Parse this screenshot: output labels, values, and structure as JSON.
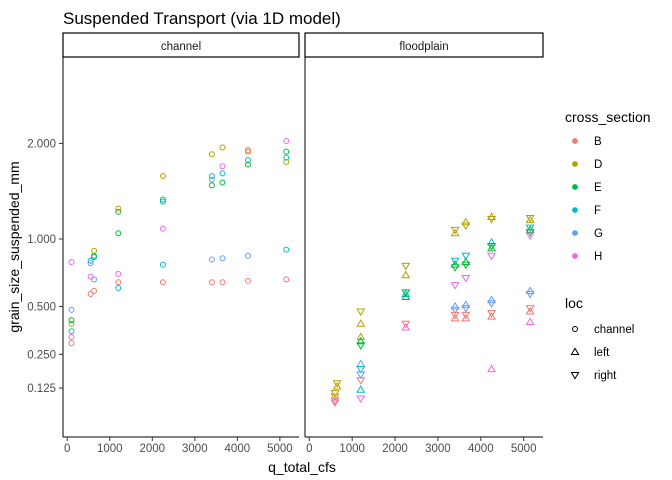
{
  "chart_data": {
    "type": "scatter",
    "title": "Suspended Transport (via 1D model)",
    "xlabel": "q_total_cfs",
    "ylabel": "grain_size_suspended_mm",
    "y_scale": "sqrt",
    "xlim": [
      -100,
      5450
    ],
    "ylim": [
      0.02,
      3.2
    ],
    "x_ticks": [
      0,
      1000,
      2000,
      3000,
      4000,
      5000
    ],
    "x_tick_labels": [
      "0",
      "1000",
      "2000",
      "3000",
      "4000",
      "5000"
    ],
    "y_ticks": [
      0.125,
      0.25,
      0.5,
      1.0,
      2.0
    ],
    "y_tick_labels": [
      "0.125",
      "0.250",
      "0.500",
      "1.000",
      "2.000"
    ],
    "facets": [
      "channel",
      "floodplain"
    ],
    "grid": false,
    "legend_position": "right",
    "colors": {
      "B": "#F8766D",
      "D": "#B79F00",
      "E": "#00BA38",
      "F": "#00BFC4",
      "G": "#619CFF",
      "H": "#F564E3"
    },
    "legends": [
      {
        "title": "cross_section",
        "entries": [
          "B",
          "D",
          "E",
          "F",
          "G",
          "H"
        ]
      },
      {
        "title": "loc",
        "entries": [
          "channel",
          "left",
          "right"
        ],
        "shapes": [
          "circle",
          "triangle-up",
          "triangle-down"
        ]
      }
    ],
    "points": [
      {
        "facet": "channel",
        "section": "B",
        "loc": "channel",
        "x": 100,
        "y": 0.3
      },
      {
        "facet": "channel",
        "section": "H",
        "loc": "channel",
        "x": 100,
        "y": 0.33
      },
      {
        "facet": "channel",
        "section": "F",
        "loc": "channel",
        "x": 100,
        "y": 0.36
      },
      {
        "facet": "channel",
        "section": "D",
        "loc": "channel",
        "x": 100,
        "y": 0.4
      },
      {
        "facet": "channel",
        "section": "E",
        "loc": "channel",
        "x": 100,
        "y": 0.42
      },
      {
        "facet": "channel",
        "section": "G",
        "loc": "channel",
        "x": 100,
        "y": 0.48
      },
      {
        "facet": "channel",
        "section": "H",
        "loc": "channel",
        "x": 100,
        "y": 0.81
      },
      {
        "facet": "channel",
        "section": "B",
        "loc": "channel",
        "x": 550,
        "y": 0.58
      },
      {
        "facet": "channel",
        "section": "B",
        "loc": "channel",
        "x": 630,
        "y": 0.6
      },
      {
        "facet": "channel",
        "section": "H",
        "loc": "channel",
        "x": 550,
        "y": 0.7
      },
      {
        "facet": "channel",
        "section": "G",
        "loc": "channel",
        "x": 630,
        "y": 0.68
      },
      {
        "facet": "channel",
        "section": "F",
        "loc": "channel",
        "x": 550,
        "y": 0.82
      },
      {
        "facet": "channel",
        "section": "G",
        "loc": "channel",
        "x": 550,
        "y": 0.8
      },
      {
        "facet": "channel",
        "section": "E",
        "loc": "channel",
        "x": 630,
        "y": 0.85
      },
      {
        "facet": "channel",
        "section": "F",
        "loc": "channel",
        "x": 630,
        "y": 0.86
      },
      {
        "facet": "channel",
        "section": "D",
        "loc": "channel",
        "x": 630,
        "y": 0.9
      },
      {
        "facet": "channel",
        "section": "E",
        "loc": "channel",
        "x": 1200,
        "y": 1.25
      },
      {
        "facet": "channel",
        "section": "D",
        "loc": "channel",
        "x": 1200,
        "y": 1.28
      },
      {
        "facet": "channel",
        "section": "E",
        "loc": "channel",
        "x": 1200,
        "y": 1.05
      },
      {
        "facet": "channel",
        "section": "H",
        "loc": "channel",
        "x": 1200,
        "y": 0.72
      },
      {
        "facet": "channel",
        "section": "B",
        "loc": "channel",
        "x": 1200,
        "y": 0.66
      },
      {
        "facet": "channel",
        "section": "F",
        "loc": "channel",
        "x": 1200,
        "y": 0.62
      },
      {
        "facet": "channel",
        "section": "D",
        "loc": "channel",
        "x": 2250,
        "y": 1.62
      },
      {
        "facet": "channel",
        "section": "E",
        "loc": "channel",
        "x": 2250,
        "y": 1.37
      },
      {
        "facet": "channel",
        "section": "F",
        "loc": "channel",
        "x": 2250,
        "y": 1.35
      },
      {
        "facet": "channel",
        "section": "H",
        "loc": "channel",
        "x": 2250,
        "y": 1.09
      },
      {
        "facet": "channel",
        "section": "F",
        "loc": "channel",
        "x": 2250,
        "y": 0.79
      },
      {
        "facet": "channel",
        "section": "B",
        "loc": "channel",
        "x": 2250,
        "y": 0.66
      },
      {
        "facet": "channel",
        "section": "D",
        "loc": "channel",
        "x": 3400,
        "y": 1.87
      },
      {
        "facet": "channel",
        "section": "F",
        "loc": "channel",
        "x": 3400,
        "y": 1.62
      },
      {
        "facet": "channel",
        "section": "G",
        "loc": "channel",
        "x": 3400,
        "y": 1.58
      },
      {
        "facet": "channel",
        "section": "E",
        "loc": "channel",
        "x": 3400,
        "y": 1.52
      },
      {
        "facet": "channel",
        "section": "G",
        "loc": "channel",
        "x": 3400,
        "y": 0.83
      },
      {
        "facet": "channel",
        "section": "B",
        "loc": "channel",
        "x": 3400,
        "y": 0.66
      },
      {
        "facet": "channel",
        "section": "D",
        "loc": "channel",
        "x": 3650,
        "y": 1.95
      },
      {
        "facet": "channel",
        "section": "H",
        "loc": "channel",
        "x": 3650,
        "y": 1.73
      },
      {
        "facet": "channel",
        "section": "F",
        "loc": "channel",
        "x": 3650,
        "y": 1.65
      },
      {
        "facet": "channel",
        "section": "E",
        "loc": "channel",
        "x": 3650,
        "y": 1.55
      },
      {
        "facet": "channel",
        "section": "G",
        "loc": "channel",
        "x": 3650,
        "y": 0.84
      },
      {
        "facet": "channel",
        "section": "B",
        "loc": "channel",
        "x": 3650,
        "y": 0.66
      },
      {
        "facet": "channel",
        "section": "D",
        "loc": "channel",
        "x": 4250,
        "y": 1.9
      },
      {
        "facet": "channel",
        "section": "B",
        "loc": "channel",
        "x": 4250,
        "y": 1.92
      },
      {
        "facet": "channel",
        "section": "F",
        "loc": "channel",
        "x": 4250,
        "y": 1.8
      },
      {
        "facet": "channel",
        "section": "E",
        "loc": "channel",
        "x": 4250,
        "y": 1.75
      },
      {
        "facet": "channel",
        "section": "G",
        "loc": "channel",
        "x": 4250,
        "y": 0.86
      },
      {
        "facet": "channel",
        "section": "B",
        "loc": "channel",
        "x": 4250,
        "y": 0.67
      },
      {
        "facet": "channel",
        "section": "H",
        "loc": "channel",
        "x": 5150,
        "y": 2.03
      },
      {
        "facet": "channel",
        "section": "E",
        "loc": "channel",
        "x": 5150,
        "y": 1.9
      },
      {
        "facet": "channel",
        "section": "F",
        "loc": "channel",
        "x": 5150,
        "y": 1.83
      },
      {
        "facet": "channel",
        "section": "D",
        "loc": "channel",
        "x": 5150,
        "y": 1.78
      },
      {
        "facet": "channel",
        "section": "F",
        "loc": "channel",
        "x": 5150,
        "y": 0.91
      },
      {
        "facet": "channel",
        "section": "B",
        "loc": "channel",
        "x": 5150,
        "y": 0.68
      },
      {
        "facet": "floodplain",
        "section": "D",
        "loc": "right",
        "x": 600,
        "y": 0.1
      },
      {
        "facet": "floodplain",
        "section": "D",
        "loc": "right",
        "x": 600,
        "y": 0.11
      },
      {
        "facet": "floodplain",
        "section": "H",
        "loc": "right",
        "x": 600,
        "y": 0.09
      },
      {
        "facet": "floodplain",
        "section": "B",
        "loc": "right",
        "x": 600,
        "y": 0.085
      },
      {
        "facet": "floodplain",
        "section": "D",
        "loc": "left",
        "x": 650,
        "y": 0.13
      },
      {
        "facet": "floodplain",
        "section": "D",
        "loc": "right",
        "x": 650,
        "y": 0.14
      },
      {
        "facet": "floodplain",
        "section": "D",
        "loc": "right",
        "x": 1200,
        "y": 0.47
      },
      {
        "facet": "floodplain",
        "section": "D",
        "loc": "left",
        "x": 1200,
        "y": 0.4
      },
      {
        "facet": "floodplain",
        "section": "D",
        "loc": "left",
        "x": 1200,
        "y": 0.33
      },
      {
        "facet": "floodplain",
        "section": "E",
        "loc": "left",
        "x": 1200,
        "y": 0.31
      },
      {
        "facet": "floodplain",
        "section": "E",
        "loc": "right",
        "x": 1200,
        "y": 0.29
      },
      {
        "facet": "floodplain",
        "section": "G",
        "loc": "left",
        "x": 1200,
        "y": 0.21
      },
      {
        "facet": "floodplain",
        "section": "F",
        "loc": "right",
        "x": 1200,
        "y": 0.19
      },
      {
        "facet": "floodplain",
        "section": "G",
        "loc": "right",
        "x": 1200,
        "y": 0.17
      },
      {
        "facet": "floodplain",
        "section": "B",
        "loc": "right",
        "x": 1200,
        "y": 0.15
      },
      {
        "facet": "floodplain",
        "section": "F",
        "loc": "left",
        "x": 1200,
        "y": 0.12
      },
      {
        "facet": "floodplain",
        "section": "H",
        "loc": "right",
        "x": 1200,
        "y": 0.095
      },
      {
        "facet": "floodplain",
        "section": "D",
        "loc": "right",
        "x": 2250,
        "y": 0.78
      },
      {
        "facet": "floodplain",
        "section": "D",
        "loc": "left",
        "x": 2250,
        "y": 0.71
      },
      {
        "facet": "floodplain",
        "section": "E",
        "loc": "right",
        "x": 2250,
        "y": 0.59
      },
      {
        "facet": "floodplain",
        "section": "F",
        "loc": "left",
        "x": 2250,
        "y": 0.58
      },
      {
        "facet": "floodplain",
        "section": "E",
        "loc": "left",
        "x": 2250,
        "y": 0.56
      },
      {
        "facet": "floodplain",
        "section": "B",
        "loc": "right",
        "x": 2250,
        "y": 0.4
      },
      {
        "facet": "floodplain",
        "section": "H",
        "loc": "left",
        "x": 2250,
        "y": 0.38
      },
      {
        "facet": "floodplain",
        "section": "D",
        "loc": "right",
        "x": 3400,
        "y": 1.08
      },
      {
        "facet": "floodplain",
        "section": "D",
        "loc": "left",
        "x": 3400,
        "y": 1.05
      },
      {
        "facet": "floodplain",
        "section": "F",
        "loc": "right",
        "x": 3400,
        "y": 0.82
      },
      {
        "facet": "floodplain",
        "section": "E",
        "loc": "left",
        "x": 3400,
        "y": 0.79
      },
      {
        "facet": "floodplain",
        "section": "E",
        "loc": "right",
        "x": 3400,
        "y": 0.77
      },
      {
        "facet": "floodplain",
        "section": "H",
        "loc": "right",
        "x": 3400,
        "y": 0.64
      },
      {
        "facet": "floodplain",
        "section": "G",
        "loc": "left",
        "x": 3400,
        "y": 0.5
      },
      {
        "facet": "floodplain",
        "section": "G",
        "loc": "right",
        "x": 3400,
        "y": 0.48
      },
      {
        "facet": "floodplain",
        "section": "B",
        "loc": "right",
        "x": 3400,
        "y": 0.45
      },
      {
        "facet": "floodplain",
        "section": "B",
        "loc": "left",
        "x": 3400,
        "y": 0.43
      },
      {
        "facet": "floodplain",
        "section": "D",
        "loc": "left",
        "x": 3650,
        "y": 1.15
      },
      {
        "facet": "floodplain",
        "section": "D",
        "loc": "right",
        "x": 3650,
        "y": 1.12
      },
      {
        "facet": "floodplain",
        "section": "F",
        "loc": "right",
        "x": 3650,
        "y": 0.86
      },
      {
        "facet": "floodplain",
        "section": "E",
        "loc": "left",
        "x": 3650,
        "y": 0.81
      },
      {
        "facet": "floodplain",
        "section": "E",
        "loc": "right",
        "x": 3650,
        "y": 0.79
      },
      {
        "facet": "floodplain",
        "section": "H",
        "loc": "right",
        "x": 3650,
        "y": 0.69
      },
      {
        "facet": "floodplain",
        "section": "G",
        "loc": "left",
        "x": 3650,
        "y": 0.51
      },
      {
        "facet": "floodplain",
        "section": "G",
        "loc": "right",
        "x": 3650,
        "y": 0.49
      },
      {
        "facet": "floodplain",
        "section": "B",
        "loc": "right",
        "x": 3650,
        "y": 0.45
      },
      {
        "facet": "floodplain",
        "section": "B",
        "loc": "left",
        "x": 3650,
        "y": 0.43
      },
      {
        "facet": "floodplain",
        "section": "D",
        "loc": "left",
        "x": 4250,
        "y": 1.2
      },
      {
        "facet": "floodplain",
        "section": "D",
        "loc": "right",
        "x": 4250,
        "y": 1.18
      },
      {
        "facet": "floodplain",
        "section": "F",
        "loc": "left",
        "x": 4250,
        "y": 0.97
      },
      {
        "facet": "floodplain",
        "section": "E",
        "loc": "right",
        "x": 4250,
        "y": 0.94
      },
      {
        "facet": "floodplain",
        "section": "E",
        "loc": "left",
        "x": 4250,
        "y": 0.92
      },
      {
        "facet": "floodplain",
        "section": "H",
        "loc": "right",
        "x": 4250,
        "y": 0.86
      },
      {
        "facet": "floodplain",
        "section": "G",
        "loc": "left",
        "x": 4250,
        "y": 0.54
      },
      {
        "facet": "floodplain",
        "section": "G",
        "loc": "right",
        "x": 4250,
        "y": 0.52
      },
      {
        "facet": "floodplain",
        "section": "B",
        "loc": "right",
        "x": 4250,
        "y": 0.46
      },
      {
        "facet": "floodplain",
        "section": "B",
        "loc": "left",
        "x": 4250,
        "y": 0.44
      },
      {
        "facet": "floodplain",
        "section": "H",
        "loc": "left",
        "x": 4250,
        "y": 0.19
      },
      {
        "facet": "floodplain",
        "section": "D",
        "loc": "right",
        "x": 5150,
        "y": 1.19
      },
      {
        "facet": "floodplain",
        "section": "D",
        "loc": "left",
        "x": 5150,
        "y": 1.17
      },
      {
        "facet": "floodplain",
        "section": "F",
        "loc": "right",
        "x": 5150,
        "y": 1.1
      },
      {
        "facet": "floodplain",
        "section": "E",
        "loc": "left",
        "x": 5150,
        "y": 1.08
      },
      {
        "facet": "floodplain",
        "section": "E",
        "loc": "right",
        "x": 5150,
        "y": 1.06
      },
      {
        "facet": "floodplain",
        "section": "H",
        "loc": "right",
        "x": 5150,
        "y": 1.03
      },
      {
        "facet": "floodplain",
        "section": "G",
        "loc": "left",
        "x": 5150,
        "y": 0.6
      },
      {
        "facet": "floodplain",
        "section": "G",
        "loc": "right",
        "x": 5150,
        "y": 0.58
      },
      {
        "facet": "floodplain",
        "section": "B",
        "loc": "right",
        "x": 5150,
        "y": 0.49
      },
      {
        "facet": "floodplain",
        "section": "B",
        "loc": "left",
        "x": 5150,
        "y": 0.47
      },
      {
        "facet": "floodplain",
        "section": "H",
        "loc": "left",
        "x": 5150,
        "y": 0.41
      }
    ]
  }
}
